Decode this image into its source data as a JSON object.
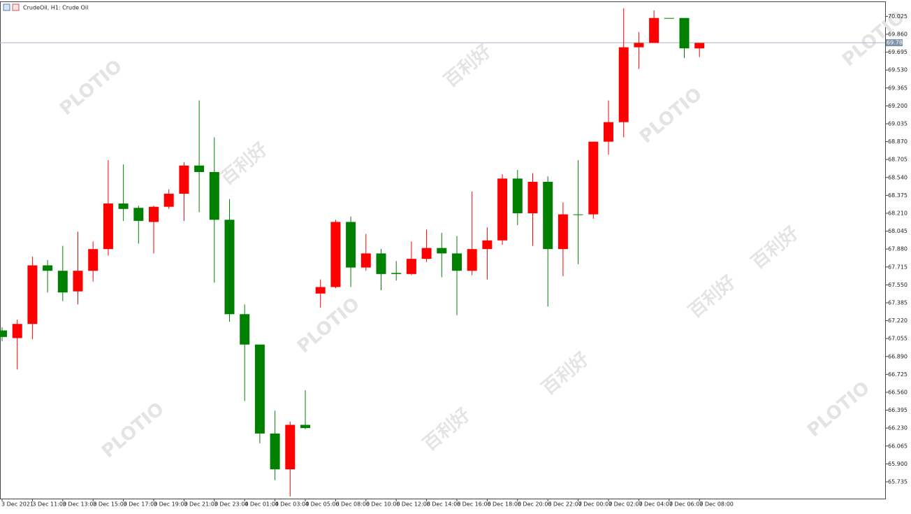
{
  "chart_data": {
    "type": "candlestick",
    "title": "CrudeOil, H1:  Crude Oil",
    "watermark": [
      "PLOTIO",
      "百利好"
    ],
    "categories": [
      "3 Dec 2021",
      null,
      "3 Dec 11:00",
      null,
      "3 Dec 13:00",
      null,
      "3 Dec 15:00",
      null,
      "3 Dec 17:00",
      null,
      "3 Dec 19:00",
      null,
      "3 Dec 21:00",
      null,
      "3 Dec 23:00",
      null,
      "4 Dec 01:00",
      null,
      "4 Dec 03:00",
      null,
      "4 Dec 05:00",
      null,
      "6 Dec 08:00",
      null,
      "6 Dec 10:00",
      null,
      "6 Dec 12:00",
      null,
      "6 Dec 14:00",
      null,
      "6 Dec 16:00",
      null,
      "6 Dec 18:00",
      null,
      "6 Dec 20:00",
      null,
      "6 Dec 22:00",
      null,
      "7 Dec 00:00",
      null,
      "7 Dec 02:00",
      null,
      "7 Dec 04:00",
      null,
      "7 Dec 06:00",
      null,
      "7 Dec 08:00"
    ],
    "open": [
      67.13,
      67.06,
      67.19,
      67.73,
      67.68,
      67.49,
      67.68,
      67.88,
      68.3,
      68.26,
      68.13,
      68.27,
      68.39,
      68.65,
      68.59,
      68.15,
      67.28,
      67.0,
      66.18,
      65.85,
      66.26,
      67.47,
      67.53,
      68.13,
      67.71,
      67.84,
      67.66,
      67.65,
      67.79,
      67.89,
      67.84,
      67.68,
      67.88,
      67.96,
      68.53,
      68.21,
      68.5,
      67.88,
      68.2,
      68.2,
      68.87,
      69.05,
      69.74,
      69.78,
      70.01,
      70.01,
      69.73
    ],
    "high": [
      67.16,
      67.23,
      67.81,
      67.78,
      67.91,
      68.04,
      67.95,
      68.7,
      68.66,
      68.28,
      68.28,
      68.43,
      68.68,
      69.25,
      68.91,
      68.34,
      67.37,
      67.0,
      66.39,
      66.29,
      66.58,
      67.6,
      68.15,
      68.18,
      68.02,
      67.88,
      67.77,
      67.95,
      68.06,
      68.03,
      68.0,
      68.41,
      68.08,
      68.57,
      68.61,
      68.58,
      68.55,
      68.31,
      68.7,
      68.87,
      69.25,
      70.1,
      69.88,
      70.08,
      70.01,
      70.01,
      69.78
    ],
    "low": [
      67.03,
      66.77,
      67.05,
      67.48,
      67.4,
      67.37,
      67.58,
      67.82,
      68.14,
      67.93,
      67.84,
      68.25,
      68.14,
      68.22,
      67.57,
      67.21,
      66.48,
      66.09,
      65.75,
      65.6,
      66.22,
      67.34,
      67.52,
      67.53,
      67.68,
      67.5,
      67.59,
      67.64,
      67.76,
      67.62,
      67.27,
      67.64,
      67.6,
      67.92,
      68.1,
      67.91,
      67.35,
      67.63,
      67.74,
      68.16,
      68.75,
      68.91,
      69.54,
      69.78,
      70.01,
      69.64,
      69.65
    ],
    "close": [
      67.07,
      67.19,
      67.73,
      67.68,
      67.48,
      67.68,
      67.88,
      68.3,
      68.25,
      68.14,
      68.27,
      68.39,
      68.65,
      68.59,
      68.15,
      67.28,
      67.0,
      66.18,
      65.85,
      66.26,
      66.23,
      67.53,
      68.13,
      67.71,
      67.84,
      67.65,
      67.65,
      67.79,
      67.89,
      67.84,
      67.68,
      67.88,
      67.96,
      68.53,
      68.21,
      68.5,
      67.88,
      68.2,
      68.2,
      68.87,
      69.05,
      69.74,
      69.78,
      70.01,
      70.01,
      69.73,
      69.78
    ],
    "up_color": "#ff0000",
    "down_color": "#008000",
    "price_line": {
      "value": 69.782,
      "color": "#a9b4c8"
    },
    "ylim": [
      65.58,
      70.15
    ],
    "yticks": [
      70.025,
      {
        "value": 69.86,
        "label": "69.860"
      },
      69.695,
      {
        "value": 69.53,
        "label": "69.530"
      },
      69.365,
      {
        "value": 69.2,
        "label": "69.200"
      },
      69.035,
      {
        "value": 68.87,
        "label": "68.870"
      },
      68.705,
      {
        "value": 68.54,
        "label": "68.540"
      },
      68.375,
      {
        "value": 68.21,
        "label": "68.210"
      },
      68.045,
      {
        "value": 67.88,
        "label": "67.880"
      },
      67.715,
      {
        "value": 67.55,
        "label": "67.550"
      },
      67.385,
      {
        "value": 67.22,
        "label": "67.220"
      },
      67.055,
      {
        "value": 66.89,
        "label": "66.890"
      },
      66.725,
      {
        "value": 66.56,
        "label": "66.560"
      },
      66.395,
      {
        "value": 66.23,
        "label": "66.230"
      },
      66.065,
      {
        "value": 65.9,
        "label": "65.900"
      },
      65.735
    ]
  }
}
